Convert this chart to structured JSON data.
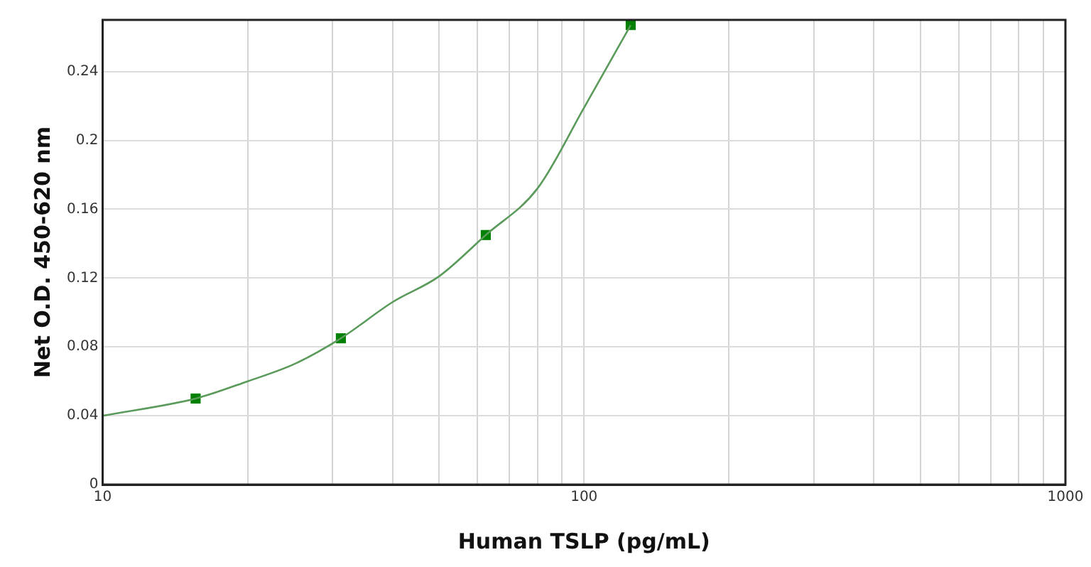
{
  "chart_data": {
    "type": "scatter",
    "xlabel": "Human TSLP (pg/mL)",
    "ylabel": "Net O.D. 450-620 nm",
    "log": "x",
    "grid": true,
    "legend": false,
    "xlim": [
      10,
      1000
    ],
    "xticks": [
      10,
      {
        "value": 20,
        "label": null
      },
      {
        "value": 30,
        "label": null
      },
      {
        "value": 40,
        "label": null
      },
      {
        "value": 50,
        "label": null
      },
      {
        "value": 60,
        "label": null
      },
      {
        "value": 70,
        "label": null
      },
      {
        "value": 80,
        "label": null
      },
      {
        "value": 90,
        "label": null
      },
      100,
      {
        "value": 200,
        "label": null
      },
      {
        "value": 300,
        "label": null
      },
      {
        "value": 400,
        "label": null
      },
      {
        "value": 500,
        "label": null
      },
      {
        "value": 600,
        "label": null
      },
      {
        "value": 700,
        "label": null
      },
      {
        "value": 800,
        "label": null
      },
      {
        "value": 900,
        "label": null
      },
      1000
    ],
    "ylim": [
      0,
      0.27
    ],
    "yticks": [
      0,
      0.04,
      0.08,
      0.12,
      0.16,
      0.2,
      0.24
    ],
    "series": [
      {
        "type": "line",
        "marker": "none",
        "line_style": "solid",
        "color": "#5a9a5a",
        "x": [
          10,
          15.6,
          20,
          25,
          31.25,
          40,
          50,
          62.5,
          80,
          100,
          125
        ],
        "values": [
          0.04,
          0.05,
          0.06,
          0.07,
          0.085,
          0.106,
          0.121,
          0.145,
          0.172,
          0.219,
          0.267
        ]
      },
      {
        "type": "scatter",
        "marker": "square",
        "color": "#008000",
        "x": [
          15.6,
          31.25,
          62.5,
          125
        ],
        "values": [
          0.05,
          0.085,
          0.145,
          0.267
        ]
      }
    ]
  }
}
